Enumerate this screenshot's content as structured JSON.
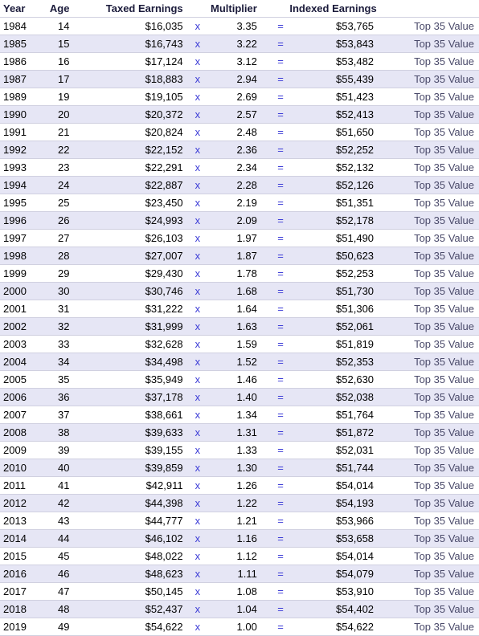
{
  "table": {
    "headers": {
      "year": "Year",
      "age": "Age",
      "taxed": "Taxed Earnings",
      "multiplier": "Multiplier",
      "indexed": "Indexed Earnings"
    },
    "symbols": {
      "times": "x",
      "equals": "="
    },
    "top35_label": "Top 35 Value",
    "colors": {
      "row_alt_bg": "#e6e6f5",
      "row_bg": "#ffffff",
      "border": "#d0d0e0",
      "symbol": "#3a3ad6",
      "header_text": "#1a1a3a",
      "top35_text": "#4a4a6a"
    },
    "font_size": 13,
    "rows": [
      {
        "year": "1984",
        "age": "14",
        "taxed": "$16,035",
        "mult": "3.35",
        "indexed": "$53,765"
      },
      {
        "year": "1985",
        "age": "15",
        "taxed": "$16,743",
        "mult": "3.22",
        "indexed": "$53,843"
      },
      {
        "year": "1986",
        "age": "16",
        "taxed": "$17,124",
        "mult": "3.12",
        "indexed": "$53,482"
      },
      {
        "year": "1987",
        "age": "17",
        "taxed": "$18,883",
        "mult": "2.94",
        "indexed": "$55,439"
      },
      {
        "year": "1989",
        "age": "19",
        "taxed": "$19,105",
        "mult": "2.69",
        "indexed": "$51,423"
      },
      {
        "year": "1990",
        "age": "20",
        "taxed": "$20,372",
        "mult": "2.57",
        "indexed": "$52,413"
      },
      {
        "year": "1991",
        "age": "21",
        "taxed": "$20,824",
        "mult": "2.48",
        "indexed": "$51,650"
      },
      {
        "year": "1992",
        "age": "22",
        "taxed": "$22,152",
        "mult": "2.36",
        "indexed": "$52,252"
      },
      {
        "year": "1993",
        "age": "23",
        "taxed": "$22,291",
        "mult": "2.34",
        "indexed": "$52,132"
      },
      {
        "year": "1994",
        "age": "24",
        "taxed": "$22,887",
        "mult": "2.28",
        "indexed": "$52,126"
      },
      {
        "year": "1995",
        "age": "25",
        "taxed": "$23,450",
        "mult": "2.19",
        "indexed": "$51,351"
      },
      {
        "year": "1996",
        "age": "26",
        "taxed": "$24,993",
        "mult": "2.09",
        "indexed": "$52,178"
      },
      {
        "year": "1997",
        "age": "27",
        "taxed": "$26,103",
        "mult": "1.97",
        "indexed": "$51,490"
      },
      {
        "year": "1998",
        "age": "28",
        "taxed": "$27,007",
        "mult": "1.87",
        "indexed": "$50,623"
      },
      {
        "year": "1999",
        "age": "29",
        "taxed": "$29,430",
        "mult": "1.78",
        "indexed": "$52,253"
      },
      {
        "year": "2000",
        "age": "30",
        "taxed": "$30,746",
        "mult": "1.68",
        "indexed": "$51,730"
      },
      {
        "year": "2001",
        "age": "31",
        "taxed": "$31,222",
        "mult": "1.64",
        "indexed": "$51,306"
      },
      {
        "year": "2002",
        "age": "32",
        "taxed": "$31,999",
        "mult": "1.63",
        "indexed": "$52,061"
      },
      {
        "year": "2003",
        "age": "33",
        "taxed": "$32,628",
        "mult": "1.59",
        "indexed": "$51,819"
      },
      {
        "year": "2004",
        "age": "34",
        "taxed": "$34,498",
        "mult": "1.52",
        "indexed": "$52,353"
      },
      {
        "year": "2005",
        "age": "35",
        "taxed": "$35,949",
        "mult": "1.46",
        "indexed": "$52,630"
      },
      {
        "year": "2006",
        "age": "36",
        "taxed": "$37,178",
        "mult": "1.40",
        "indexed": "$52,038"
      },
      {
        "year": "2007",
        "age": "37",
        "taxed": "$38,661",
        "mult": "1.34",
        "indexed": "$51,764"
      },
      {
        "year": "2008",
        "age": "38",
        "taxed": "$39,633",
        "mult": "1.31",
        "indexed": "$51,872"
      },
      {
        "year": "2009",
        "age": "39",
        "taxed": "$39,155",
        "mult": "1.33",
        "indexed": "$52,031"
      },
      {
        "year": "2010",
        "age": "40",
        "taxed": "$39,859",
        "mult": "1.30",
        "indexed": "$51,744"
      },
      {
        "year": "2011",
        "age": "41",
        "taxed": "$42,911",
        "mult": "1.26",
        "indexed": "$54,014"
      },
      {
        "year": "2012",
        "age": "42",
        "taxed": "$44,398",
        "mult": "1.22",
        "indexed": "$54,193"
      },
      {
        "year": "2013",
        "age": "43",
        "taxed": "$44,777",
        "mult": "1.21",
        "indexed": "$53,966"
      },
      {
        "year": "2014",
        "age": "44",
        "taxed": "$46,102",
        "mult": "1.16",
        "indexed": "$53,658"
      },
      {
        "year": "2015",
        "age": "45",
        "taxed": "$48,022",
        "mult": "1.12",
        "indexed": "$54,014"
      },
      {
        "year": "2016",
        "age": "46",
        "taxed": "$48,623",
        "mult": "1.11",
        "indexed": "$54,079"
      },
      {
        "year": "2017",
        "age": "47",
        "taxed": "$50,145",
        "mult": "1.08",
        "indexed": "$53,910"
      },
      {
        "year": "2018",
        "age": "48",
        "taxed": "$52,437",
        "mult": "1.04",
        "indexed": "$54,402"
      },
      {
        "year": "2019",
        "age": "49",
        "taxed": "$54,622",
        "mult": "1.00",
        "indexed": "$54,622"
      }
    ]
  }
}
